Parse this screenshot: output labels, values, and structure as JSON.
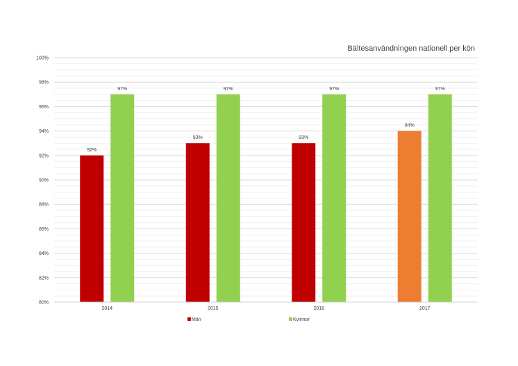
{
  "chart_data": {
    "type": "bar",
    "title": "Bältesanvändningen nationell per kön",
    "xlabel": "",
    "ylabel": "",
    "categories": [
      "2014",
      "2015",
      "2016",
      "2017"
    ],
    "ylim": [
      80,
      100
    ],
    "yticks": [
      80,
      82,
      84,
      86,
      88,
      90,
      92,
      94,
      96,
      98,
      100
    ],
    "ytick_labels": [
      "80%",
      "82%",
      "84%",
      "86%",
      "88%",
      "90%",
      "92%",
      "94%",
      "96%",
      "98%",
      "100%"
    ],
    "series": [
      {
        "name": "Män",
        "values": [
          92,
          93,
          93,
          94
        ],
        "labels": [
          "92%",
          "93%",
          "93%",
          "94%"
        ],
        "color": "#C00000",
        "point_colors": [
          "#C00000",
          "#C00000",
          "#C00000",
          "#ED7D31"
        ]
      },
      {
        "name": "Kvinnor",
        "values": [
          97,
          97,
          97,
          97
        ],
        "labels": [
          "97%",
          "97%",
          "97%",
          "97%"
        ],
        "color": "#92D050",
        "point_colors": [
          "#92D050",
          "#92D050",
          "#92D050",
          "#92D050"
        ]
      }
    ],
    "grid": true,
    "legend_position": "bottom"
  }
}
